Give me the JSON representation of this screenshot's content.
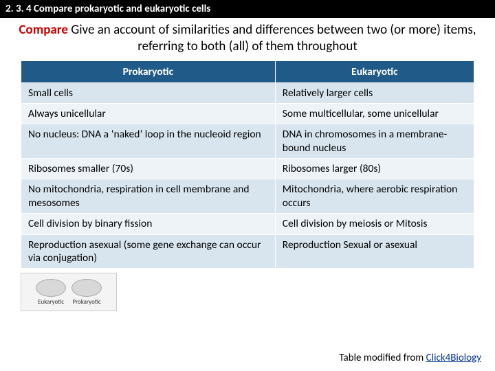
{
  "header": {
    "section_number": "2. 3. 4 Compare prokaryotic and eukaryotic cells"
  },
  "instruction": {
    "keyword": "Compare",
    "rest": "   Give an account of similarities and differences between two (or more) items, referring to both (all) of them throughout"
  },
  "table": {
    "columns": [
      "Prokaryotic",
      "Eukaryotic"
    ],
    "rows": [
      [
        "Small cells",
        "Relatively larger cells"
      ],
      [
        "Always unicellular",
        "Some multicellular, some unicellular"
      ],
      [
        "No nucleus: DNA a ‘naked’ loop in the nucleoid region",
        "DNA in chromosomes in a membrane-bound nucleus"
      ],
      [
        "Ribosomes smaller (70s)",
        "Ribosomes larger (80s)"
      ],
      [
        "No mitochondria, respiration in cell membrane and mesosomes",
        "Mitochondria, where aerobic respiration occurs"
      ],
      [
        "Cell division by binary fission",
        "Cell division by meiosis or Mitosis"
      ],
      [
        "Reproduction asexual (some gene exchange can occur via conjugation)",
        "Reproduction Sexual or asexual"
      ]
    ],
    "header_bg": "#1f5a88",
    "header_fg": "#ffffff",
    "row_odd_bg": "#d8e5ef",
    "row_even_bg": "#eef3f8"
  },
  "thumb": {
    "left_label": "Eukaryotic",
    "right_label": "Prokaryotic"
  },
  "credit": {
    "prefix": "Table modified from ",
    "link_text": "Click4Biology"
  }
}
